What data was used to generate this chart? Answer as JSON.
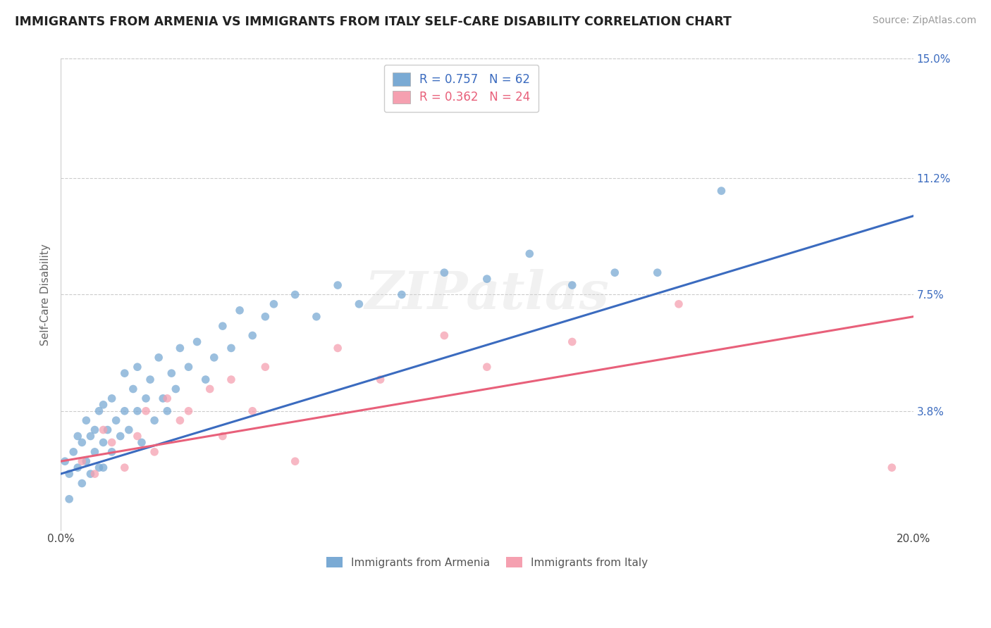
{
  "title": "IMMIGRANTS FROM ARMENIA VS IMMIGRANTS FROM ITALY SELF-CARE DISABILITY CORRELATION CHART",
  "source": "Source: ZipAtlas.com",
  "ylabel": "Self-Care Disability",
  "x_min": 0.0,
  "x_max": 0.2,
  "y_min": 0.0,
  "y_max": 0.15,
  "x_ticks": [
    0.0,
    0.05,
    0.1,
    0.15,
    0.2
  ],
  "x_tick_labels": [
    "0.0%",
    "",
    "",
    "",
    "20.0%"
  ],
  "y_tick_labels_right": [
    "15.0%",
    "11.2%",
    "7.5%",
    "3.8%"
  ],
  "y_tick_positions_right": [
    0.15,
    0.112,
    0.075,
    0.038
  ],
  "armenia_color": "#7aaad4",
  "italy_color": "#f5a0b0",
  "armenia_line_color": "#3b6bbf",
  "italy_line_color": "#e8607a",
  "R_armenia": 0.757,
  "N_armenia": 62,
  "R_italy": 0.362,
  "N_italy": 24,
  "legend_R_color": "#3b6bbf",
  "legend_R_italy_color": "#e8607a",
  "watermark": "ZIPatlas",
  "armenia_scatter": [
    [
      0.001,
      0.022
    ],
    [
      0.002,
      0.018
    ],
    [
      0.003,
      0.025
    ],
    [
      0.004,
      0.02
    ],
    [
      0.004,
      0.03
    ],
    [
      0.005,
      0.015
    ],
    [
      0.005,
      0.028
    ],
    [
      0.006,
      0.022
    ],
    [
      0.006,
      0.035
    ],
    [
      0.007,
      0.018
    ],
    [
      0.007,
      0.03
    ],
    [
      0.008,
      0.025
    ],
    [
      0.008,
      0.032
    ],
    [
      0.009,
      0.02
    ],
    [
      0.009,
      0.038
    ],
    [
      0.01,
      0.028
    ],
    [
      0.01,
      0.04
    ],
    [
      0.011,
      0.032
    ],
    [
      0.012,
      0.025
    ],
    [
      0.012,
      0.042
    ],
    [
      0.013,
      0.035
    ],
    [
      0.014,
      0.03
    ],
    [
      0.015,
      0.038
    ],
    [
      0.015,
      0.05
    ],
    [
      0.016,
      0.032
    ],
    [
      0.017,
      0.045
    ],
    [
      0.018,
      0.038
    ],
    [
      0.018,
      0.052
    ],
    [
      0.019,
      0.028
    ],
    [
      0.02,
      0.042
    ],
    [
      0.021,
      0.048
    ],
    [
      0.022,
      0.035
    ],
    [
      0.023,
      0.055
    ],
    [
      0.024,
      0.042
    ],
    [
      0.025,
      0.038
    ],
    [
      0.026,
      0.05
    ],
    [
      0.027,
      0.045
    ],
    [
      0.028,
      0.058
    ],
    [
      0.03,
      0.052
    ],
    [
      0.032,
      0.06
    ],
    [
      0.034,
      0.048
    ],
    [
      0.036,
      0.055
    ],
    [
      0.038,
      0.065
    ],
    [
      0.04,
      0.058
    ],
    [
      0.042,
      0.07
    ],
    [
      0.045,
      0.062
    ],
    [
      0.048,
      0.068
    ],
    [
      0.05,
      0.072
    ],
    [
      0.055,
      0.075
    ],
    [
      0.06,
      0.068
    ],
    [
      0.065,
      0.078
    ],
    [
      0.07,
      0.072
    ],
    [
      0.08,
      0.075
    ],
    [
      0.09,
      0.082
    ],
    [
      0.1,
      0.08
    ],
    [
      0.11,
      0.088
    ],
    [
      0.12,
      0.078
    ],
    [
      0.13,
      0.082
    ],
    [
      0.14,
      0.082
    ],
    [
      0.155,
      0.108
    ],
    [
      0.002,
      0.01
    ],
    [
      0.01,
      0.02
    ]
  ],
  "italy_scatter": [
    [
      0.005,
      0.022
    ],
    [
      0.008,
      0.018
    ],
    [
      0.01,
      0.032
    ],
    [
      0.012,
      0.028
    ],
    [
      0.015,
      0.02
    ],
    [
      0.018,
      0.03
    ],
    [
      0.02,
      0.038
    ],
    [
      0.022,
      0.025
    ],
    [
      0.025,
      0.042
    ],
    [
      0.028,
      0.035
    ],
    [
      0.03,
      0.038
    ],
    [
      0.035,
      0.045
    ],
    [
      0.038,
      0.03
    ],
    [
      0.04,
      0.048
    ],
    [
      0.045,
      0.038
    ],
    [
      0.048,
      0.052
    ],
    [
      0.055,
      0.022
    ],
    [
      0.065,
      0.058
    ],
    [
      0.075,
      0.048
    ],
    [
      0.09,
      0.062
    ],
    [
      0.1,
      0.052
    ],
    [
      0.12,
      0.06
    ],
    [
      0.145,
      0.072
    ],
    [
      0.195,
      0.02
    ]
  ],
  "arm_line_x0": 0.0,
  "arm_line_y0": 0.018,
  "arm_line_x1": 0.2,
  "arm_line_y1": 0.1,
  "ita_line_x0": 0.0,
  "ita_line_y0": 0.022,
  "ita_line_x1": 0.2,
  "ita_line_y1": 0.068
}
